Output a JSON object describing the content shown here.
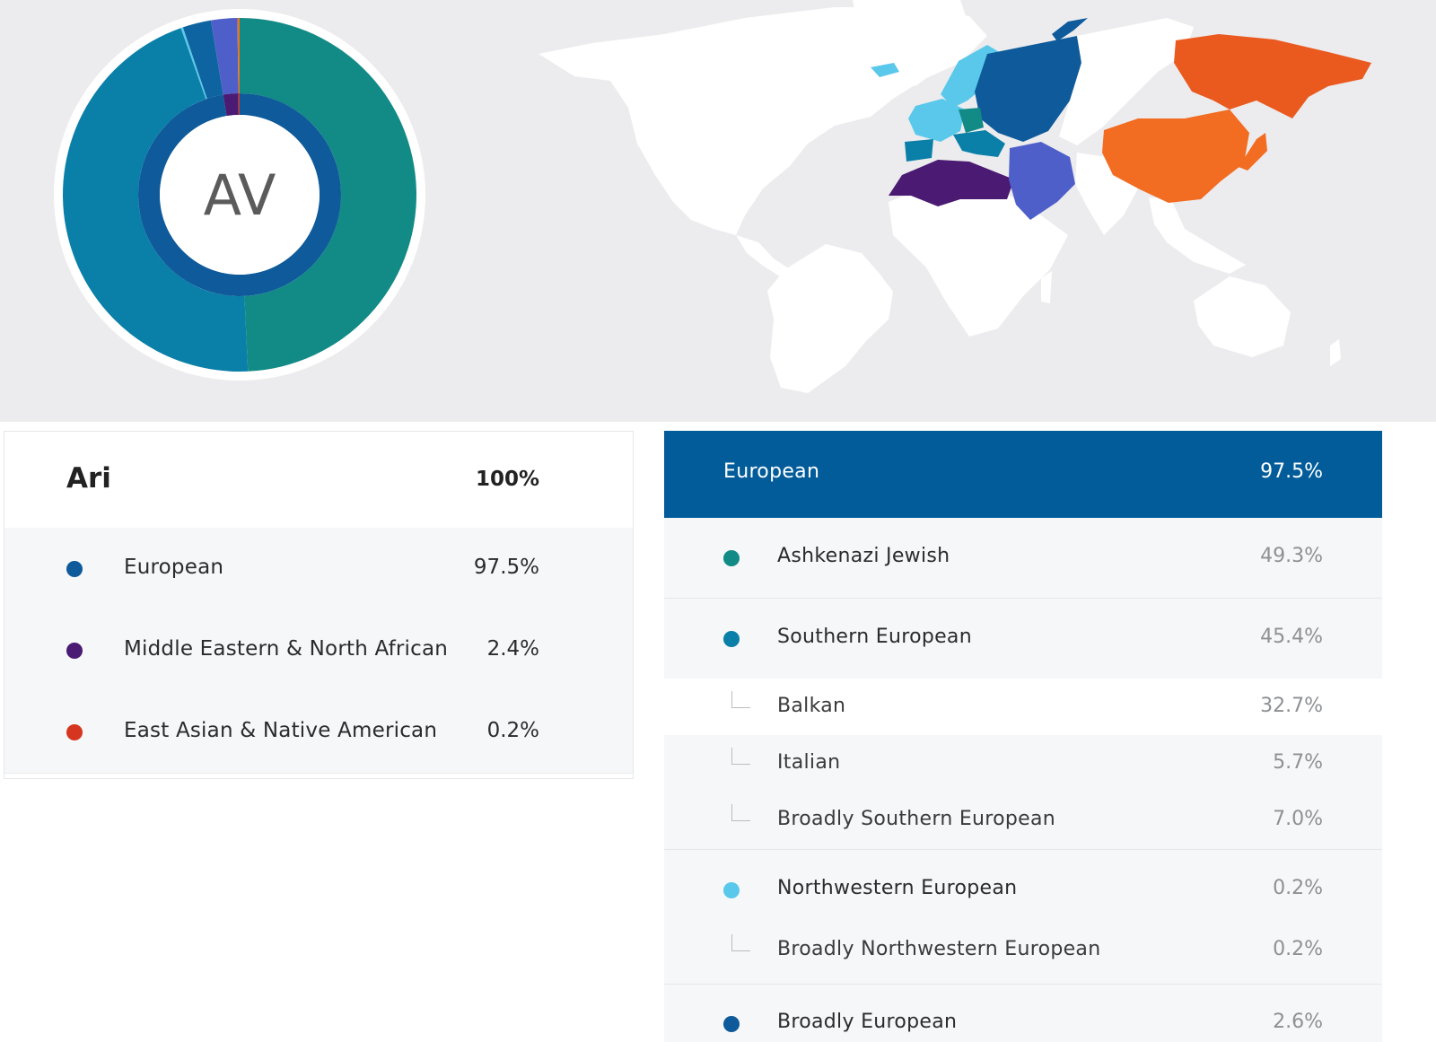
{
  "profile": {
    "initials": "AV",
    "name": "Ari",
    "total_pct": "100%"
  },
  "donut_segments": [
    {
      "name": "Ashkenazi Jewish",
      "value": 49.3,
      "color": "#128a86"
    },
    {
      "name": "Southern European",
      "value": 45.4,
      "color": "#0a7fa8"
    },
    {
      "name": "Northwestern European",
      "value": 0.2,
      "color": "#5ac8ea"
    },
    {
      "name": "Broadly European",
      "value": 2.6,
      "color": "#0e64a0"
    },
    {
      "name": "Middle Eastern & North African",
      "value": 2.4,
      "color": "#4f5fc9"
    },
    {
      "name": "East Asian & Native American",
      "value": 0.2,
      "color": "#e8731f"
    }
  ],
  "donut_inner": [
    {
      "name": "European",
      "value": 97.5,
      "color": "#0e5a9a"
    },
    {
      "name": "Middle Eastern & North African",
      "value": 2.4,
      "color": "#4b1a73"
    },
    {
      "name": "East Asian & Native American",
      "value": 0.2,
      "color": "#d6361f"
    }
  ],
  "summary": [
    {
      "label": "European",
      "pct": "97.5%",
      "color": "#0e5a9a"
    },
    {
      "label": "Middle Eastern & North African",
      "pct": "2.4%",
      "color": "#4b1a73"
    },
    {
      "label": "East Asian & Native American",
      "pct": "0.2%",
      "color": "#d6361f"
    }
  ],
  "detail": {
    "header": {
      "label": "European",
      "pct": "97.5%",
      "color": "#035c9a"
    },
    "groups": [
      {
        "label": "Ashkenazi Jewish",
        "pct": "49.3%",
        "color": "#128a86"
      },
      {
        "label": "Southern European",
        "pct": "45.4%",
        "color": "#0a7fa8",
        "subs": [
          {
            "label": "Balkan",
            "pct": "32.7%"
          },
          {
            "label": "Italian",
            "pct": "5.7%"
          },
          {
            "label": "Broadly Southern European",
            "pct": "7.0%"
          }
        ]
      },
      {
        "label": "Northwestern European",
        "pct": "0.2%",
        "color": "#5ac8ea",
        "subs": [
          {
            "label": "Broadly Northwestern European",
            "pct": "0.2%"
          }
        ]
      },
      {
        "label": "Broadly European",
        "pct": "2.6%",
        "color": "#0e5a9a"
      }
    ]
  },
  "map_regions": [
    {
      "name": "Northwestern European",
      "color": "#5ac8ea"
    },
    {
      "name": "Broadly European",
      "color": "#0e5a9a"
    },
    {
      "name": "Ashkenazi Jewish",
      "color": "#128a86"
    },
    {
      "name": "Southern European",
      "color": "#0a7fa8"
    },
    {
      "name": "Middle Eastern & North African",
      "color": "#4f5fc9"
    },
    {
      "name": "North African",
      "color": "#4b1a73"
    },
    {
      "name": "East Asian & Native American",
      "color": "#f26c21"
    }
  ]
}
